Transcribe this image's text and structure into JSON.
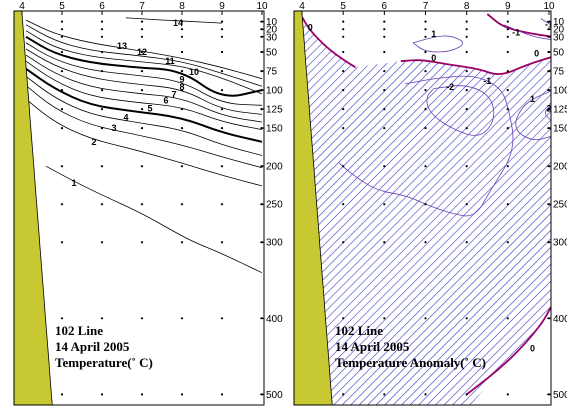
{
  "colors": {
    "land": "#c8c832",
    "hatch": "#3838c8",
    "zero_contour": "#990066",
    "anomaly_contour": "#6a3fb5",
    "contour": "#000000",
    "background": "#ffffff"
  },
  "chart_data": [
    {
      "type": "contour",
      "title_lines": [
        "102 Line",
        "14 April 2005",
        "Temperature(˚ C)"
      ],
      "x_ticks": [
        4,
        5,
        6,
        7,
        8,
        9,
        10
      ],
      "y_ticks": [
        10,
        20,
        30,
        50,
        75,
        100,
        125,
        150,
        200,
        250,
        300,
        400,
        500
      ],
      "ylim": [
        0,
        510
      ],
      "y_reversed": true,
      "stations": [
        4,
        5,
        6,
        7,
        8,
        9,
        10
      ],
      "sample_depths": [
        10,
        20,
        30,
        50,
        75,
        100,
        125,
        150,
        200,
        250,
        300,
        400,
        500
      ],
      "contours": [
        {
          "level": 14,
          "label": "14",
          "label_at": [
            7.9,
            12
          ],
          "points": [
            [
              6.6,
              5
            ],
            [
              7.5,
              8
            ],
            [
              8.3,
              10
            ],
            [
              9.0,
              12
            ]
          ]
        },
        {
          "level": 13,
          "label": "13",
          "label_at": [
            6.5,
            42
          ],
          "points": [
            [
              4.1,
              8
            ],
            [
              4.8,
              26
            ],
            [
              5.7,
              38
            ],
            [
              6.8,
              47
            ],
            [
              8.0,
              58
            ],
            [
              9.0,
              70
            ],
            [
              10.0,
              85
            ]
          ]
        },
        {
          "level": 12,
          "label": "12",
          "label_at": [
            7.0,
            50
          ],
          "points": [
            [
              4.1,
              14
            ],
            [
              4.8,
              35
            ],
            [
              5.7,
              48
            ],
            [
              6.8,
              54
            ],
            [
              8.0,
              62
            ],
            [
              9.0,
              78
            ],
            [
              10.0,
              95
            ]
          ]
        },
        {
          "level": 11,
          "label": "11",
          "label_at": [
            7.7,
            62
          ],
          "points": [
            [
              4.1,
              22
            ],
            [
              4.8,
              44
            ],
            [
              5.7,
              56
            ],
            [
              6.8,
              62
            ],
            [
              8.0,
              68
            ],
            [
              9.0,
              84
            ],
            [
              10.0,
              105
            ]
          ]
        },
        {
          "level": 10,
          "label": "10",
          "label_at": [
            8.3,
            76
          ],
          "bold": true,
          "points": [
            [
              4.1,
              30
            ],
            [
              4.8,
              52
            ],
            [
              5.7,
              64
            ],
            [
              6.8,
              70
            ],
            [
              8.0,
              74
            ],
            [
              9.0,
              112
            ],
            [
              10.0,
              100
            ]
          ]
        },
        {
          "level": 9,
          "label": "9",
          "label_at": [
            8.0,
            86
          ],
          "points": [
            [
              4.1,
              38
            ],
            [
              4.8,
              60
            ],
            [
              5.7,
              74
            ],
            [
              6.8,
              80
            ],
            [
              8.0,
              88
            ],
            [
              9.0,
              118
            ],
            [
              10.0,
              120
            ]
          ]
        },
        {
          "level": 8,
          "label": "8",
          "label_at": [
            8.0,
            96
          ],
          "points": [
            [
              4.1,
              46
            ],
            [
              4.8,
              68
            ],
            [
              5.7,
              84
            ],
            [
              6.8,
              92
            ],
            [
              8.0,
              98
            ],
            [
              9.0,
              126
            ],
            [
              10.0,
              132
            ]
          ]
        },
        {
          "level": 7,
          "label": "7",
          "label_at": [
            7.8,
            106
          ],
          "points": [
            [
              4.1,
              54
            ],
            [
              4.8,
              78
            ],
            [
              5.7,
              96
            ],
            [
              6.8,
              104
            ],
            [
              8.0,
              110
            ],
            [
              9.0,
              134
            ],
            [
              10.0,
              142
            ]
          ]
        },
        {
          "level": 6,
          "label": "6",
          "label_at": [
            7.6,
            114
          ],
          "points": [
            [
              4.1,
              62
            ],
            [
              4.8,
              88
            ],
            [
              5.7,
              108
            ],
            [
              6.8,
              116
            ],
            [
              8.0,
              122
            ],
            [
              9.0,
              142
            ],
            [
              10.0,
              152
            ]
          ]
        },
        {
          "level": 5,
          "label": "5",
          "label_at": [
            7.2,
            124
          ],
          "bold": true,
          "points": [
            [
              4.1,
              72
            ],
            [
              4.8,
              98
            ],
            [
              5.7,
              120
            ],
            [
              6.8,
              128
            ],
            [
              8.0,
              136
            ],
            [
              9.0,
              156
            ],
            [
              10.0,
              168
            ]
          ]
        },
        {
          "level": 4,
          "label": "4",
          "label_at": [
            6.6,
            136
          ],
          "points": [
            [
              4.1,
              82
            ],
            [
              4.8,
              110
            ],
            [
              5.7,
              132
            ],
            [
              6.8,
              142
            ],
            [
              8.0,
              152
            ],
            [
              9.0,
              172
            ],
            [
              10.0,
              186
            ]
          ]
        },
        {
          "level": 3,
          "label": "3",
          "label_at": [
            6.3,
            150
          ],
          "points": [
            [
              4.1,
              94
            ],
            [
              4.8,
              124
            ],
            [
              5.7,
              146
            ],
            [
              6.8,
              158
            ],
            [
              8.0,
              172
            ],
            [
              9.0,
              188
            ],
            [
              10.0,
              202
            ]
          ]
        },
        {
          "level": 2,
          "label": "2",
          "label_at": [
            5.8,
            168
          ],
          "points": [
            [
              4.1,
              112
            ],
            [
              4.8,
              142
            ],
            [
              5.7,
              164
            ],
            [
              6.8,
              178
            ],
            [
              8.0,
              196
            ],
            [
              9.0,
              212
            ],
            [
              10.0,
              226
            ]
          ]
        },
        {
          "level": 1,
          "label": "1",
          "label_at": [
            5.3,
            222
          ],
          "points": [
            [
              4.6,
              200
            ],
            [
              5.3,
              220
            ],
            [
              6.0,
              238
            ],
            [
              7.0,
              262
            ],
            [
              7.8,
              286
            ],
            [
              8.3,
              300
            ],
            [
              9.0,
              315
            ],
            [
              10.0,
              340
            ]
          ]
        }
      ]
    },
    {
      "type": "contour",
      "title_lines": [
        "102 Line",
        "14 April 2005",
        "Temperature Anomaly(˚ C)"
      ],
      "x_ticks": [
        4,
        5,
        6,
        7,
        8,
        9,
        10
      ],
      "y_ticks": [
        10,
        20,
        30,
        50,
        75,
        100,
        125,
        150,
        200,
        250,
        300,
        400,
        500
      ],
      "ylim": [
        0,
        510
      ],
      "y_reversed": true,
      "stations": [
        4,
        5,
        6,
        7,
        8,
        9,
        10
      ],
      "sample_depths": [
        10,
        20,
        30,
        50,
        75,
        100,
        125,
        150,
        200,
        250,
        300,
        400,
        500
      ],
      "shaded": "negative anomaly (below 0)",
      "contours": [
        {
          "level": 0,
          "label": "0",
          "label_at": [
            4.2,
            18
          ],
          "bold": true,
          "points": [
            [
              4.0,
              4
            ],
            [
              4.2,
              22
            ],
            [
              4.6,
              44
            ],
            [
              5.0,
              60
            ],
            [
              5.3,
              70
            ]
          ]
        },
        {
          "level": 0,
          "label": "0",
          "label_at": [
            7.2,
            58
          ],
          "bold": true,
          "points": [
            [
              6.4,
              62
            ],
            [
              6.9,
              60
            ],
            [
              7.5,
              66
            ],
            [
              8.3,
              72
            ],
            [
              8.8,
              82
            ],
            [
              9.5,
              66
            ],
            [
              10.1,
              56
            ]
          ]
        },
        {
          "level": 0,
          "label": "0",
          "label_at": [
            9.7,
            52
          ],
          "bold": true,
          "points": [
            [
              8.5,
              0
            ],
            [
              8.9,
              18
            ],
            [
              9.6,
              26
            ],
            [
              10.1,
              30
            ]
          ]
        },
        {
          "level": 0,
          "label": "0",
          "label_at": [
            9.6,
            440
          ],
          "bold": true,
          "points": [
            [
              8.0,
              500
            ],
            [
              9.0,
              458
            ],
            [
              9.8,
              410
            ],
            [
              10.1,
              380
            ]
          ]
        },
        {
          "level": 1,
          "label": "1",
          "label_at": [
            7.2,
            26
          ],
          "points": [
            [
              6.7,
              38
            ],
            [
              7.2,
              30
            ],
            [
              7.6,
              28
            ],
            [
              8.0,
              38
            ],
            [
              7.6,
              50
            ],
            [
              7.0,
              50
            ],
            [
              6.7,
              38
            ]
          ]
        },
        {
          "level": 1,
          "label": "1",
          "label_at": [
            9.6,
            112
          ],
          "points": [
            [
              10.1,
              100
            ],
            [
              9.4,
              116
            ],
            [
              9.1,
              150
            ],
            [
              9.6,
              168
            ],
            [
              10.1,
              160
            ]
          ]
        },
        {
          "level": 2,
          "label": "2",
          "label_at": [
            10.0,
            124
          ],
          "points": [
            [
              10.1,
              118
            ],
            [
              9.85,
              130
            ],
            [
              10.1,
              142
            ]
          ]
        },
        {
          "level": -1,
          "label": "-1",
          "label_at": [
            9.2,
            24
          ],
          "points": [
            [
              8.9,
              14
            ],
            [
              9.6,
              30
            ],
            [
              10.1,
              34
            ]
          ]
        },
        {
          "level": -1,
          "label": "-1",
          "label_at": [
            8.5,
            88
          ],
          "points": [
            [
              6.5,
              92
            ],
            [
              7.3,
              84
            ],
            [
              8.2,
              80
            ],
            [
              8.8,
              96
            ],
            [
              9.0,
              118
            ],
            [
              9.2,
              178
            ],
            [
              8.6,
              230
            ],
            [
              8.2,
              268
            ],
            [
              7.6,
              262
            ],
            [
              7.0,
              250
            ],
            [
              6.5,
              238
            ],
            [
              5.8,
              232
            ],
            [
              5.2,
              210
            ],
            [
              4.9,
              196
            ]
          ]
        },
        {
          "level": -2,
          "label": "-2",
          "label_at": [
            7.6,
            96
          ],
          "points": [
            [
              7.2,
              98
            ],
            [
              8.0,
              92
            ],
            [
              8.6,
              108
            ],
            [
              8.7,
              140
            ],
            [
              8.3,
              164
            ],
            [
              7.6,
              150
            ],
            [
              7.1,
              130
            ],
            [
              7.0,
              110
            ],
            [
              7.2,
              98
            ]
          ]
        },
        {
          "level": -1,
          "label": "-1",
          "label_at": [
            10.0,
            14
          ],
          "points": [
            [
              9.8,
              6
            ],
            [
              10.1,
              16
            ]
          ]
        }
      ]
    }
  ]
}
